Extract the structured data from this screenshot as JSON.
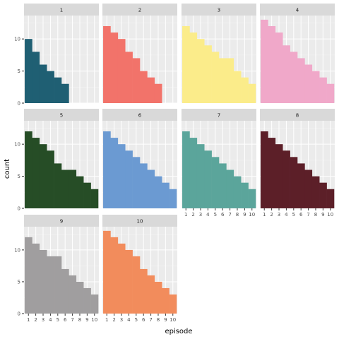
{
  "chart_data": {
    "type": "bar",
    "xlabel": "episode",
    "ylabel": "count",
    "x_ticks": [
      "1",
      "2",
      "3",
      "4",
      "5",
      "6",
      "7",
      "8",
      "9",
      "10"
    ],
    "y_ticks": [
      0,
      5,
      10
    ],
    "ylim": [
      0,
      13.65
    ],
    "facet_layout": "4 columns x 3 rows",
    "grid": true,
    "panel_background": "#EBEBEB",
    "strip_background": "#D9D9D9",
    "facets": [
      {
        "label": "1",
        "color": "#1F5F73",
        "x": [
          1,
          2,
          3,
          4,
          5,
          6
        ],
        "values": [
          10,
          8,
          6,
          5,
          4,
          3
        ]
      },
      {
        "label": "2",
        "color": "#F2736A",
        "x": [
          1,
          2,
          3,
          4,
          5,
          6,
          7,
          8
        ],
        "values": [
          12,
          11,
          10,
          8,
          7,
          5,
          4,
          3
        ]
      },
      {
        "label": "3",
        "color": "#FBEC8A",
        "x": [
          1,
          2,
          3,
          4,
          5,
          6,
          7,
          8,
          9,
          10
        ],
        "values": [
          12,
          11,
          10,
          9,
          8,
          7,
          7,
          5,
          4,
          3
        ]
      },
      {
        "label": "4",
        "color": "#F0A8C9",
        "x": [
          1,
          2,
          3,
          4,
          5,
          6,
          7,
          8,
          9,
          10
        ],
        "values": [
          13,
          12,
          11,
          9,
          8,
          7,
          6,
          5,
          4,
          3
        ]
      },
      {
        "label": "5",
        "color": "#264D26",
        "x": [
          1,
          2,
          3,
          4,
          5,
          6,
          7,
          8,
          9,
          10
        ],
        "values": [
          12,
          11,
          10,
          9,
          7,
          6,
          6,
          5,
          4,
          3
        ]
      },
      {
        "label": "6",
        "color": "#6B9AD2",
        "x": [
          1,
          2,
          3,
          4,
          5,
          6,
          7,
          8,
          9,
          10
        ],
        "values": [
          12,
          11,
          10,
          9,
          8,
          7,
          6,
          5,
          4,
          3
        ]
      },
      {
        "label": "7",
        "color": "#5BA59B",
        "x": [
          1,
          2,
          3,
          4,
          5,
          6,
          7,
          8,
          9,
          10
        ],
        "values": [
          12,
          11,
          10,
          9,
          8,
          7,
          6,
          5,
          4,
          3
        ]
      },
      {
        "label": "8",
        "color": "#5C1F28",
        "x": [
          1,
          2,
          3,
          4,
          5,
          6,
          7,
          8,
          9,
          10
        ],
        "values": [
          12,
          11,
          10,
          9,
          8,
          7,
          6,
          5,
          4,
          3
        ]
      },
      {
        "label": "9",
        "color": "#A09E9F",
        "x": [
          1,
          2,
          3,
          4,
          5,
          6,
          7,
          8,
          9,
          10
        ],
        "values": [
          12,
          11,
          10,
          9,
          9,
          7,
          6,
          5,
          4,
          3
        ]
      },
      {
        "label": "10",
        "color": "#F28C5C",
        "x": [
          1,
          2,
          3,
          4,
          5,
          6,
          7,
          8,
          9,
          10
        ],
        "values": [
          13,
          12,
          11,
          10,
          9,
          7,
          6,
          5,
          4,
          3
        ]
      }
    ]
  }
}
